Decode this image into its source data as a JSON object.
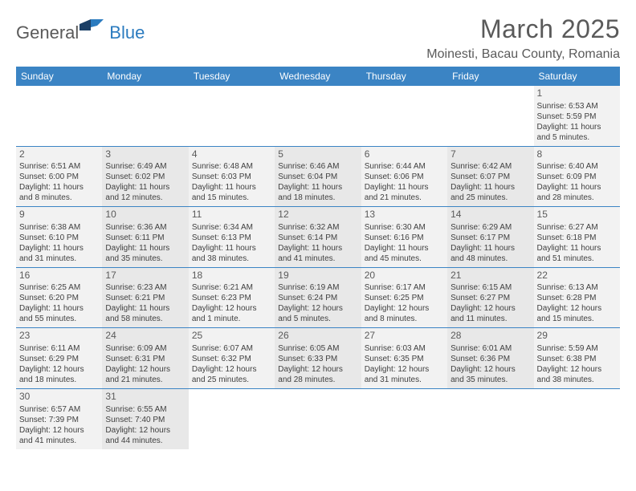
{
  "logo": {
    "text1": "General",
    "text2": "Blue",
    "color1": "#5a5a5a",
    "color2": "#2b7bbf"
  },
  "title": {
    "month": "March 2025",
    "location": "Moinesti, Bacau County, Romania",
    "fontsize_month": 32,
    "fontsize_loc": 16,
    "color": "#5a5a5a"
  },
  "colors": {
    "header_bg": "#3b84c4",
    "header_fg": "#ffffff",
    "border": "#3b84c4",
    "shade_a": "#f2f2f2",
    "shade_b": "#e8e8e8",
    "text": "#404040"
  },
  "weekdays": [
    "Sunday",
    "Monday",
    "Tuesday",
    "Wednesday",
    "Thursday",
    "Friday",
    "Saturday"
  ],
  "weeks": [
    [
      null,
      null,
      null,
      null,
      null,
      null,
      {
        "n": "1",
        "sr": "Sunrise: 6:53 AM",
        "ss": "Sunset: 5:59 PM",
        "d1": "Daylight: 11 hours",
        "d2": "and 5 minutes."
      }
    ],
    [
      {
        "n": "2",
        "sr": "Sunrise: 6:51 AM",
        "ss": "Sunset: 6:00 PM",
        "d1": "Daylight: 11 hours",
        "d2": "and 8 minutes."
      },
      {
        "n": "3",
        "sr": "Sunrise: 6:49 AM",
        "ss": "Sunset: 6:02 PM",
        "d1": "Daylight: 11 hours",
        "d2": "and 12 minutes."
      },
      {
        "n": "4",
        "sr": "Sunrise: 6:48 AM",
        "ss": "Sunset: 6:03 PM",
        "d1": "Daylight: 11 hours",
        "d2": "and 15 minutes."
      },
      {
        "n": "5",
        "sr": "Sunrise: 6:46 AM",
        "ss": "Sunset: 6:04 PM",
        "d1": "Daylight: 11 hours",
        "d2": "and 18 minutes."
      },
      {
        "n": "6",
        "sr": "Sunrise: 6:44 AM",
        "ss": "Sunset: 6:06 PM",
        "d1": "Daylight: 11 hours",
        "d2": "and 21 minutes."
      },
      {
        "n": "7",
        "sr": "Sunrise: 6:42 AM",
        "ss": "Sunset: 6:07 PM",
        "d1": "Daylight: 11 hours",
        "d2": "and 25 minutes."
      },
      {
        "n": "8",
        "sr": "Sunrise: 6:40 AM",
        "ss": "Sunset: 6:09 PM",
        "d1": "Daylight: 11 hours",
        "d2": "and 28 minutes."
      }
    ],
    [
      {
        "n": "9",
        "sr": "Sunrise: 6:38 AM",
        "ss": "Sunset: 6:10 PM",
        "d1": "Daylight: 11 hours",
        "d2": "and 31 minutes."
      },
      {
        "n": "10",
        "sr": "Sunrise: 6:36 AM",
        "ss": "Sunset: 6:11 PM",
        "d1": "Daylight: 11 hours",
        "d2": "and 35 minutes."
      },
      {
        "n": "11",
        "sr": "Sunrise: 6:34 AM",
        "ss": "Sunset: 6:13 PM",
        "d1": "Daylight: 11 hours",
        "d2": "and 38 minutes."
      },
      {
        "n": "12",
        "sr": "Sunrise: 6:32 AM",
        "ss": "Sunset: 6:14 PM",
        "d1": "Daylight: 11 hours",
        "d2": "and 41 minutes."
      },
      {
        "n": "13",
        "sr": "Sunrise: 6:30 AM",
        "ss": "Sunset: 6:16 PM",
        "d1": "Daylight: 11 hours",
        "d2": "and 45 minutes."
      },
      {
        "n": "14",
        "sr": "Sunrise: 6:29 AM",
        "ss": "Sunset: 6:17 PM",
        "d1": "Daylight: 11 hours",
        "d2": "and 48 minutes."
      },
      {
        "n": "15",
        "sr": "Sunrise: 6:27 AM",
        "ss": "Sunset: 6:18 PM",
        "d1": "Daylight: 11 hours",
        "d2": "and 51 minutes."
      }
    ],
    [
      {
        "n": "16",
        "sr": "Sunrise: 6:25 AM",
        "ss": "Sunset: 6:20 PM",
        "d1": "Daylight: 11 hours",
        "d2": "and 55 minutes."
      },
      {
        "n": "17",
        "sr": "Sunrise: 6:23 AM",
        "ss": "Sunset: 6:21 PM",
        "d1": "Daylight: 11 hours",
        "d2": "and 58 minutes."
      },
      {
        "n": "18",
        "sr": "Sunrise: 6:21 AM",
        "ss": "Sunset: 6:23 PM",
        "d1": "Daylight: 12 hours",
        "d2": "and 1 minute."
      },
      {
        "n": "19",
        "sr": "Sunrise: 6:19 AM",
        "ss": "Sunset: 6:24 PM",
        "d1": "Daylight: 12 hours",
        "d2": "and 5 minutes."
      },
      {
        "n": "20",
        "sr": "Sunrise: 6:17 AM",
        "ss": "Sunset: 6:25 PM",
        "d1": "Daylight: 12 hours",
        "d2": "and 8 minutes."
      },
      {
        "n": "21",
        "sr": "Sunrise: 6:15 AM",
        "ss": "Sunset: 6:27 PM",
        "d1": "Daylight: 12 hours",
        "d2": "and 11 minutes."
      },
      {
        "n": "22",
        "sr": "Sunrise: 6:13 AM",
        "ss": "Sunset: 6:28 PM",
        "d1": "Daylight: 12 hours",
        "d2": "and 15 minutes."
      }
    ],
    [
      {
        "n": "23",
        "sr": "Sunrise: 6:11 AM",
        "ss": "Sunset: 6:29 PM",
        "d1": "Daylight: 12 hours",
        "d2": "and 18 minutes."
      },
      {
        "n": "24",
        "sr": "Sunrise: 6:09 AM",
        "ss": "Sunset: 6:31 PM",
        "d1": "Daylight: 12 hours",
        "d2": "and 21 minutes."
      },
      {
        "n": "25",
        "sr": "Sunrise: 6:07 AM",
        "ss": "Sunset: 6:32 PM",
        "d1": "Daylight: 12 hours",
        "d2": "and 25 minutes."
      },
      {
        "n": "26",
        "sr": "Sunrise: 6:05 AM",
        "ss": "Sunset: 6:33 PM",
        "d1": "Daylight: 12 hours",
        "d2": "and 28 minutes."
      },
      {
        "n": "27",
        "sr": "Sunrise: 6:03 AM",
        "ss": "Sunset: 6:35 PM",
        "d1": "Daylight: 12 hours",
        "d2": "and 31 minutes."
      },
      {
        "n": "28",
        "sr": "Sunrise: 6:01 AM",
        "ss": "Sunset: 6:36 PM",
        "d1": "Daylight: 12 hours",
        "d2": "and 35 minutes."
      },
      {
        "n": "29",
        "sr": "Sunrise: 5:59 AM",
        "ss": "Sunset: 6:38 PM",
        "d1": "Daylight: 12 hours",
        "d2": "and 38 minutes."
      }
    ],
    [
      {
        "n": "30",
        "sr": "Sunrise: 6:57 AM",
        "ss": "Sunset: 7:39 PM",
        "d1": "Daylight: 12 hours",
        "d2": "and 41 minutes."
      },
      {
        "n": "31",
        "sr": "Sunrise: 6:55 AM",
        "ss": "Sunset: 7:40 PM",
        "d1": "Daylight: 12 hours",
        "d2": "and 44 minutes."
      },
      null,
      null,
      null,
      null,
      null
    ]
  ]
}
